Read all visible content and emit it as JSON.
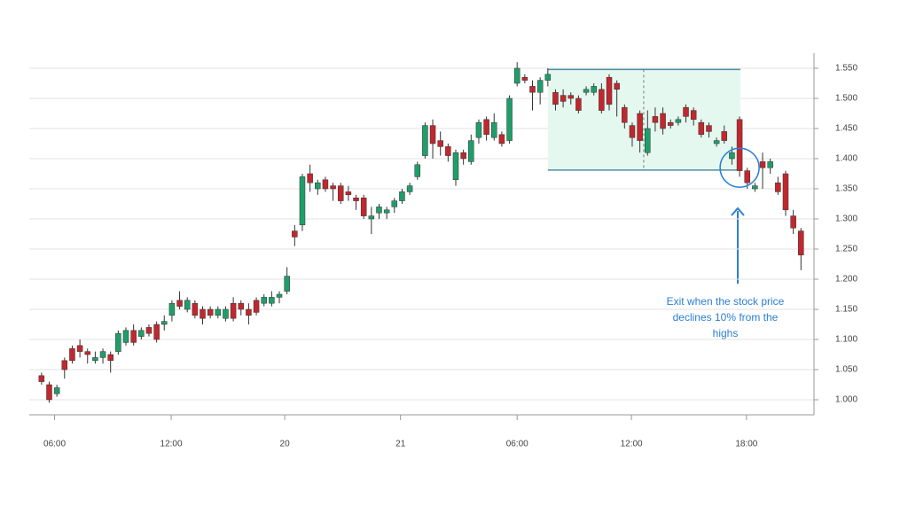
{
  "chart_data": {
    "type": "candlestick",
    "x": [
      0,
      1,
      2,
      3,
      4,
      5,
      6,
      7,
      8,
      9,
      10,
      11,
      12,
      13,
      14,
      15,
      16,
      17,
      18,
      19,
      20,
      21,
      22,
      23,
      24,
      25,
      26,
      27,
      28,
      29,
      30,
      31,
      32,
      33,
      34,
      35,
      36,
      37,
      38,
      39,
      40,
      41,
      42,
      43,
      44,
      45,
      46,
      47,
      48,
      49,
      50,
      51,
      52,
      53,
      54,
      55,
      56,
      57,
      58,
      59,
      60,
      61,
      62,
      63,
      64,
      65,
      66,
      67,
      68,
      69,
      70,
      71,
      72,
      73,
      74,
      75,
      76,
      77,
      78,
      79,
      80,
      81,
      82,
      83,
      84,
      85,
      86,
      87,
      88,
      89,
      90,
      91,
      92,
      93,
      94,
      95,
      96,
      97,
      98,
      99
    ],
    "open": [
      1.04,
      1.025,
      1.01,
      1.065,
      1.085,
      1.09,
      1.08,
      1.065,
      1.07,
      1.075,
      1.08,
      1.095,
      1.115,
      1.105,
      1.12,
      1.125,
      1.125,
      1.14,
      1.165,
      1.15,
      1.16,
      1.15,
      1.15,
      1.14,
      1.135,
      1.16,
      1.16,
      1.15,
      1.165,
      1.16,
      1.16,
      1.17,
      1.18,
      1.28,
      1.29,
      1.375,
      1.35,
      1.365,
      1.355,
      1.355,
      1.345,
      1.335,
      1.335,
      1.3,
      1.31,
      1.31,
      1.32,
      1.33,
      1.345,
      1.37,
      1.405,
      1.455,
      1.43,
      1.42,
      1.365,
      1.41,
      1.395,
      1.435,
      1.465,
      1.435,
      1.44,
      1.43,
      1.525,
      1.535,
      1.52,
      1.51,
      1.53,
      1.51,
      1.505,
      1.505,
      1.5,
      1.51,
      1.51,
      1.515,
      1.535,
      1.525,
      1.485,
      1.455,
      1.475,
      1.41,
      1.47,
      1.475,
      1.46,
      1.46,
      1.485,
      1.48,
      1.46,
      1.455,
      1.425,
      1.445,
      1.4,
      1.465,
      1.38,
      1.35,
      1.395,
      1.385,
      1.36,
      1.375,
      1.305,
      1.28
    ],
    "high": [
      1.045,
      1.03,
      1.025,
      1.07,
      1.09,
      1.1,
      1.085,
      1.08,
      1.085,
      1.08,
      1.115,
      1.12,
      1.125,
      1.12,
      1.125,
      1.13,
      1.14,
      1.165,
      1.18,
      1.17,
      1.165,
      1.155,
      1.155,
      1.155,
      1.155,
      1.17,
      1.165,
      1.16,
      1.17,
      1.175,
      1.18,
      1.18,
      1.22,
      1.29,
      1.375,
      1.39,
      1.365,
      1.37,
      1.36,
      1.36,
      1.355,
      1.34,
      1.34,
      1.32,
      1.325,
      1.32,
      1.335,
      1.35,
      1.36,
      1.395,
      1.46,
      1.465,
      1.445,
      1.425,
      1.415,
      1.415,
      1.44,
      1.465,
      1.47,
      1.475,
      1.445,
      1.505,
      1.56,
      1.54,
      1.53,
      1.535,
      1.55,
      1.515,
      1.515,
      1.51,
      1.505,
      1.52,
      1.525,
      1.525,
      1.54,
      1.53,
      1.49,
      1.46,
      1.48,
      1.48,
      1.485,
      1.485,
      1.465,
      1.47,
      1.49,
      1.485,
      1.465,
      1.46,
      1.435,
      1.455,
      1.42,
      1.47,
      1.385,
      1.36,
      1.41,
      1.4,
      1.37,
      1.38,
      1.315,
      1.285
    ],
    "low": [
      1.025,
      0.995,
      1.005,
      1.035,
      1.06,
      1.07,
      1.06,
      1.06,
      1.06,
      1.045,
      1.075,
      1.09,
      1.09,
      1.1,
      1.105,
      1.095,
      1.115,
      1.13,
      1.15,
      1.145,
      1.135,
      1.125,
      1.135,
      1.135,
      1.13,
      1.13,
      1.14,
      1.125,
      1.14,
      1.155,
      1.155,
      1.16,
      1.175,
      1.255,
      1.28,
      1.345,
      1.34,
      1.345,
      1.33,
      1.325,
      1.33,
      1.315,
      1.3,
      1.275,
      1.3,
      1.3,
      1.31,
      1.325,
      1.34,
      1.365,
      1.4,
      1.4,
      1.405,
      1.395,
      1.355,
      1.39,
      1.39,
      1.425,
      1.43,
      1.43,
      1.42,
      1.425,
      1.52,
      1.525,
      1.48,
      1.49,
      1.52,
      1.48,
      1.485,
      1.49,
      1.475,
      1.505,
      1.505,
      1.475,
      1.48,
      1.47,
      1.45,
      1.42,
      1.41,
      1.405,
      1.445,
      1.44,
      1.45,
      1.455,
      1.46,
      1.455,
      1.435,
      1.435,
      1.42,
      1.425,
      1.39,
      1.37,
      1.35,
      1.345,
      1.35,
      1.375,
      1.34,
      1.305,
      1.275,
      1.215
    ],
    "close": [
      1.03,
      1.0,
      1.02,
      1.05,
      1.065,
      1.08,
      1.075,
      1.07,
      1.08,
      1.065,
      1.11,
      1.115,
      1.095,
      1.115,
      1.11,
      1.1,
      1.13,
      1.16,
      1.155,
      1.165,
      1.14,
      1.135,
      1.14,
      1.15,
      1.15,
      1.135,
      1.15,
      1.14,
      1.145,
      1.17,
      1.17,
      1.175,
      1.205,
      1.27,
      1.37,
      1.36,
      1.36,
      1.35,
      1.35,
      1.33,
      1.34,
      1.33,
      1.305,
      1.305,
      1.32,
      1.315,
      1.33,
      1.345,
      1.355,
      1.39,
      1.455,
      1.425,
      1.42,
      1.405,
      1.41,
      1.4,
      1.43,
      1.46,
      1.44,
      1.46,
      1.425,
      1.5,
      1.55,
      1.53,
      1.51,
      1.53,
      1.54,
      1.49,
      1.495,
      1.5,
      1.48,
      1.515,
      1.52,
      1.48,
      1.49,
      1.515,
      1.46,
      1.435,
      1.43,
      1.45,
      1.46,
      1.45,
      1.455,
      1.465,
      1.47,
      1.465,
      1.44,
      1.445,
      1.43,
      1.43,
      1.41,
      1.38,
      1.36,
      1.355,
      1.385,
      1.395,
      1.345,
      1.315,
      1.285,
      1.24
    ],
    "up_color": "#1f9e6a",
    "down_color": "#c1272d",
    "xlim": [
      -1.6,
      100.7
    ],
    "xticks": [
      {
        "value": 1.7,
        "label": "06:00"
      },
      {
        "value": 16.9,
        "label": "12:00"
      },
      {
        "value": 31.7,
        "label": "20"
      },
      {
        "value": 46.8,
        "label": "21"
      },
      {
        "value": 62,
        "label": "06:00"
      },
      {
        "value": 76.9,
        "label": "12:00"
      },
      {
        "value": 91.9,
        "label": "18:00"
      }
    ],
    "ylim": [
      0.975,
      1.575
    ],
    "yticks": [
      {
        "value": 1.0,
        "label": "1.000"
      },
      {
        "value": 1.05,
        "label": "1.050"
      },
      {
        "value": 1.1,
        "label": "1.100"
      },
      {
        "value": 1.15,
        "label": "1.150"
      },
      {
        "value": 1.2,
        "label": "1.200"
      },
      {
        "value": 1.25,
        "label": "1.250"
      },
      {
        "value": 1.3,
        "label": "1.300"
      },
      {
        "value": 1.35,
        "label": "1.350"
      },
      {
        "value": 1.4,
        "label": "1.400"
      },
      {
        "value": 1.45,
        "label": "1.450"
      },
      {
        "value": 1.5,
        "label": "1.500"
      },
      {
        "value": 1.55,
        "label": "1.550"
      }
    ],
    "grid": true,
    "range_box": {
      "x": [
        66,
        91.1
      ],
      "y": [
        1.381,
        1.548
      ],
      "divider_x": 78.5
    },
    "annotation": {
      "text": [
        "Exit when the stock price",
        "declines 10% from the",
        "highs"
      ],
      "x": 91,
      "y": 1.385
    }
  }
}
